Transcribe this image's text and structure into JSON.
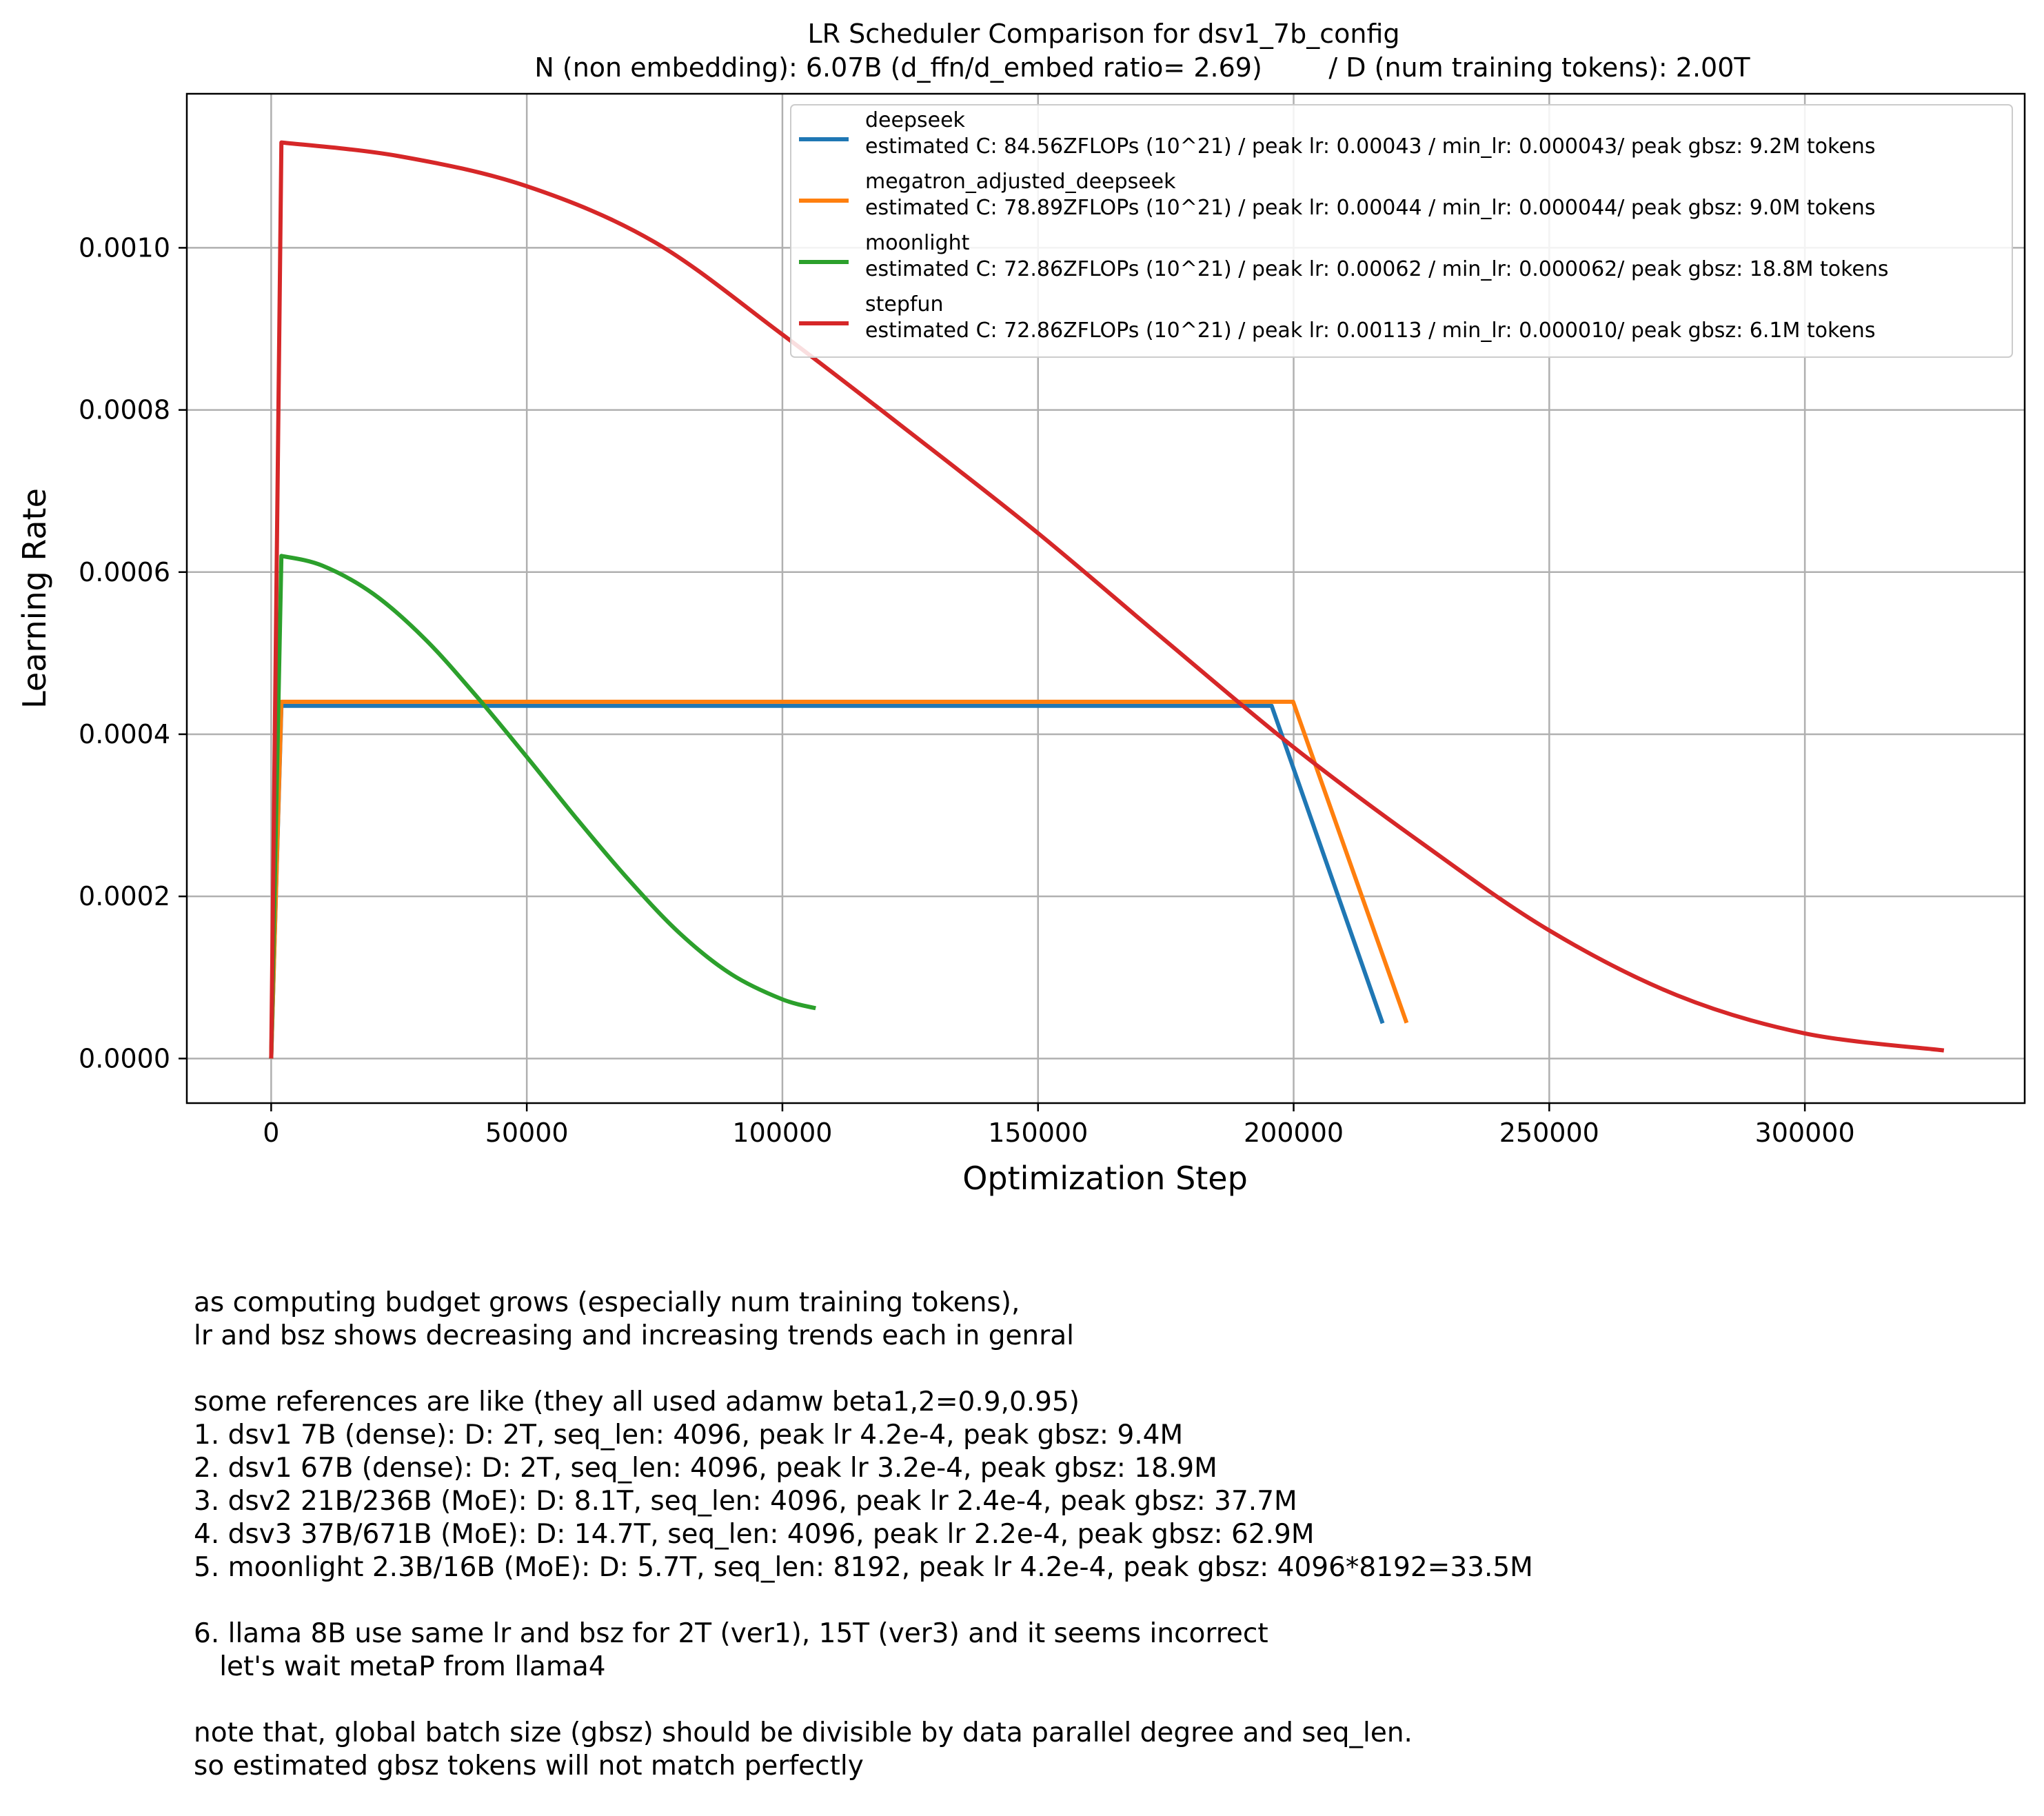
{
  "chart_data": {
    "type": "line",
    "title": "LR Scheduler Comparison for dsv1_7b_config",
    "subtitle": "N (non embedding): 6.07B (d_ffn/d_embed ratio= 2.69)        / D (num training tokens): 2.00T",
    "xlabel": "Optimization Step",
    "ylabel": "Learning Rate",
    "xlim": [
      -16500,
      343000
    ],
    "ylim": [
      -5.5e-05,
      0.00119
    ],
    "xticks": [
      0,
      50000,
      100000,
      150000,
      200000,
      250000,
      300000
    ],
    "xtick_labels": [
      "0",
      "50000",
      "100000",
      "150000",
      "200000",
      "250000",
      "300000"
    ],
    "yticks": [
      0,
      0.0002,
      0.0004,
      0.0006,
      0.0008,
      0.001
    ],
    "ytick_labels": [
      "0.0000",
      "0.0002",
      "0.0004",
      "0.0006",
      "0.0008",
      "0.0010"
    ],
    "grid": true,
    "legend_position": "top-right",
    "series": [
      {
        "name": "deepseek",
        "description": "estimated C: 84.56ZFLOPs (10^21) / peak lr: 0.00043 / min_lr: 0.000043/ peak gbsz: 9.2M tokens",
        "color": "#1f77b4",
        "x": [
          0,
          2000,
          195700,
          217400
        ],
        "y": [
          0,
          0.000435,
          0.000435,
          4.35e-05
        ]
      },
      {
        "name": "megatron_adjusted_deepseek",
        "description": "estimated C: 78.89ZFLOPs (10^21) / peak lr: 0.00044 / min_lr: 0.000044/ peak gbsz: 9.0M tokens",
        "color": "#ff7f0e",
        "x": [
          0,
          2000,
          199900,
          222100
        ],
        "y": [
          0,
          0.00044,
          0.00044,
          4.4e-05
        ]
      },
      {
        "name": "moonlight",
        "description": "estimated C: 72.86ZFLOPs (10^21) / peak lr: 0.00062 / min_lr: 0.000062/ peak gbsz: 18.8M tokens",
        "color": "#2ca02c",
        "x": [
          0,
          2000,
          10000,
          20000,
          30000,
          40000,
          50000,
          60000,
          70000,
          80000,
          90000,
          100000,
          106500
        ],
        "y": [
          0,
          0.00062,
          0.000608,
          0.000573,
          0.000518,
          0.000448,
          0.000372,
          0.000294,
          0.00022,
          0.000154,
          0.000104,
          7.3e-05,
          6.2e-05
        ]
      },
      {
        "name": "stepfun",
        "description": "estimated C: 72.86ZFLOPs (10^21) / peak lr: 0.00113 / min_lr: 0.000010/ peak gbsz: 6.1M tokens",
        "color": "#d62728",
        "x": [
          0,
          2000,
          25000,
          50000,
          75000,
          100000,
          125000,
          150000,
          175000,
          200000,
          225000,
          250000,
          275000,
          300000,
          327200
        ],
        "y": [
          0,
          0.00113,
          0.001113,
          0.001076,
          0.001007,
          0.000893,
          0.000772,
          0.000648,
          0.000515,
          0.000384,
          0.000266,
          0.000158,
          7.8e-05,
          3.1e-05,
          1e-05
        ]
      }
    ]
  },
  "notes": [
    "as computing budget grows (especially num training tokens),",
    "lr and bsz shows decreasing and increasing trends each in genral",
    "",
    "some references are like (they all used adamw beta1,2=0.9,0.95)",
    "1. dsv1 7B (dense): D: 2T, seq_len: 4096, peak lr 4.2e-4, peak gbsz: 9.4M",
    "2. dsv1 67B (dense): D: 2T, seq_len: 4096, peak lr 3.2e-4, peak gbsz: 18.9M",
    "3. dsv2 21B/236B (MoE): D: 8.1T, seq_len: 4096, peak lr 2.4e-4, peak gbsz: 37.7M",
    "4. dsv3 37B/671B (MoE): D: 14.7T, seq_len: 4096, peak lr 2.2e-4, peak gbsz: 62.9M",
    "5. moonlight 2.3B/16B (MoE): D: 5.7T, seq_len: 8192, peak lr 4.2e-4, peak gbsz: 4096*8192=33.5M",
    "",
    "6. llama 8B use same lr and bsz for 2T (ver1), 15T (ver3) and it seems incorrect",
    "   let's wait metaP from llama4",
    "",
    "note that, global batch size (gbsz) should be divisible by data parallel degree and seq_len.",
    "so estimated gbsz tokens will not match perfectly"
  ]
}
